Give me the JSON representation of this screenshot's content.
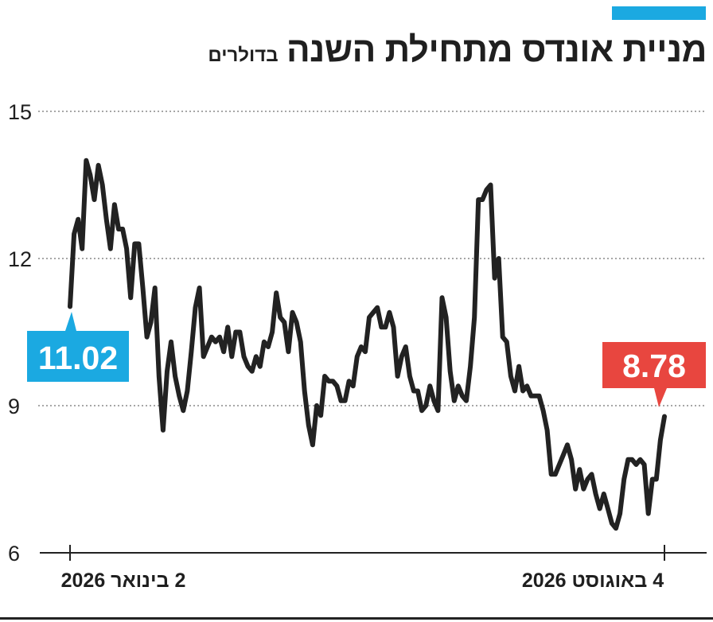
{
  "header": {
    "title": "מניית אונדס מתחילת השנה",
    "unit": "בדולרים"
  },
  "colors": {
    "accent": "#1ba9e1",
    "line": "#222222",
    "start_label_bg": "#1ba9e1",
    "end_label_bg": "#e8463f",
    "grid": "#888888"
  },
  "chart_data": {
    "type": "line",
    "title": "מניית אונדס מתחילת השנה",
    "subtitle": "בדולרים",
    "xlabel": "",
    "ylabel": "",
    "ylim": [
      6,
      15
    ],
    "yticks": [
      15,
      12,
      9,
      6
    ],
    "ytick_labels": [
      "15",
      "12",
      "9",
      "6"
    ],
    "grid": true,
    "x_start_label": "2 בינואר 2026",
    "x_end_label": "4 באוגוסט 2026",
    "start_value_label": "11.02",
    "end_value_label": "8.78",
    "values": [
      11.02,
      12.5,
      12.8,
      12.2,
      14.0,
      13.7,
      13.2,
      13.9,
      13.5,
      12.8,
      12.2,
      13.1,
      12.6,
      12.6,
      12.2,
      11.2,
      12.3,
      12.3,
      11.4,
      10.4,
      10.7,
      11.4,
      9.6,
      8.5,
      9.7,
      10.3,
      9.6,
      9.2,
      8.9,
      9.3,
      10.1,
      11.0,
      11.4,
      10.0,
      10.2,
      10.4,
      10.3,
      10.4,
      10.1,
      10.6,
      10.0,
      10.5,
      10.5,
      10.0,
      9.8,
      9.7,
      10.0,
      9.8,
      10.3,
      10.2,
      10.5,
      11.3,
      10.8,
      10.7,
      10.1,
      10.9,
      10.7,
      10.3,
      9.3,
      8.6,
      8.2,
      9.0,
      8.8,
      9.6,
      9.5,
      9.5,
      9.4,
      9.1,
      9.1,
      9.5,
      9.4,
      10.0,
      10.2,
      10.1,
      10.8,
      10.9,
      11.0,
      10.6,
      10.6,
      10.9,
      10.6,
      9.6,
      10.0,
      10.2,
      9.6,
      9.3,
      9.3,
      8.9,
      9.0,
      9.4,
      9.1,
      8.9,
      11.2,
      10.8,
      9.7,
      9.1,
      9.4,
      9.2,
      9.1,
      9.8,
      10.8,
      13.2,
      13.2,
      13.4,
      13.5,
      11.6,
      12.0,
      10.4,
      10.3,
      9.6,
      9.3,
      9.8,
      9.3,
      9.4,
      9.2,
      9.2,
      9.2,
      8.9,
      8.5,
      7.6,
      7.6,
      7.8,
      8.0,
      8.2,
      7.9,
      7.3,
      7.7,
      7.3,
      7.5,
      7.6,
      7.2,
      6.9,
      7.2,
      6.9,
      6.6,
      6.5,
      6.8,
      7.5,
      7.9,
      7.9,
      7.8,
      7.9,
      7.8,
      6.8,
      7.5,
      7.5,
      8.3,
      8.78
    ]
  }
}
